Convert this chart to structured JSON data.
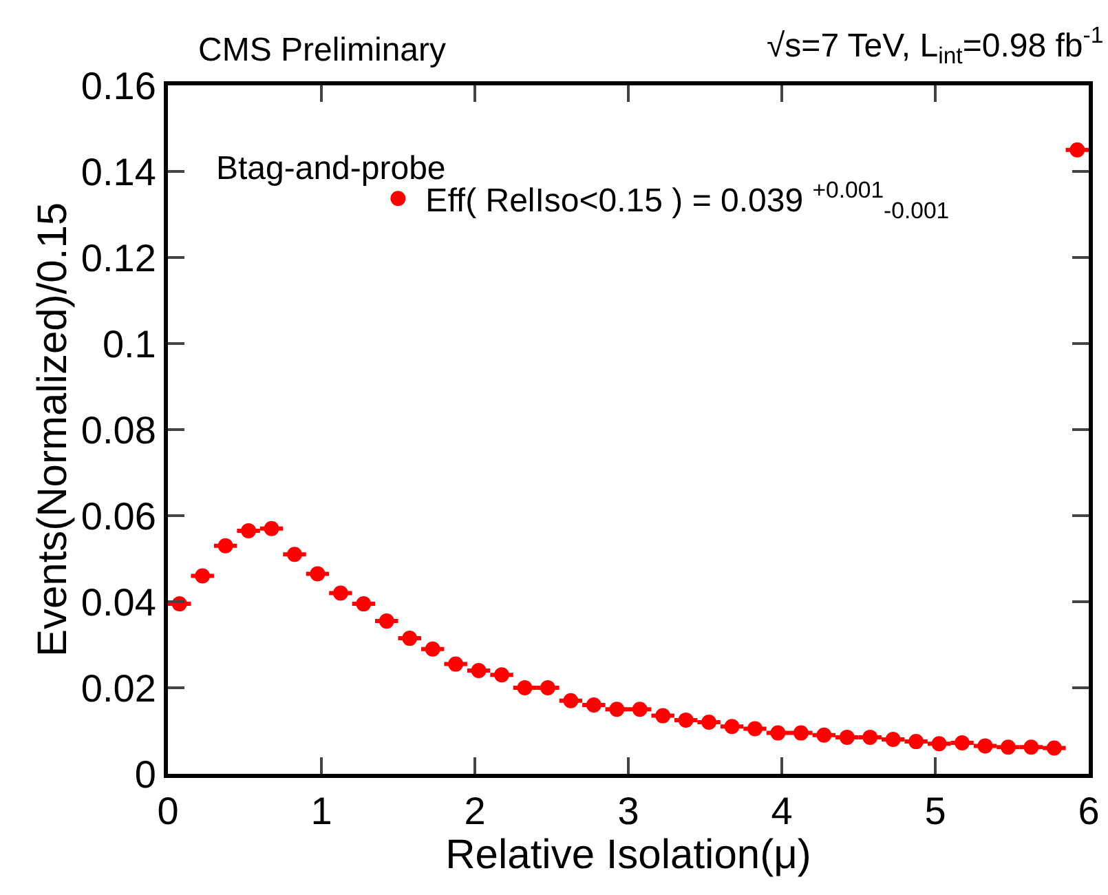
{
  "chart_data": {
    "type": "scatter",
    "title": "CMS Preliminary",
    "subtitle": "√s=7 TeV, L$_{int}$=0.98 fb$^{-1}$",
    "xlabel": "Relative Isolation(μ)",
    "ylabel": "Events(Normalized)/0.15",
    "annotations": [
      "Btag-and-probe"
    ],
    "x": [
      0.075,
      0.225,
      0.375,
      0.525,
      0.675,
      0.825,
      0.975,
      1.125,
      1.275,
      1.425,
      1.575,
      1.725,
      1.875,
      2.025,
      2.175,
      2.325,
      2.475,
      2.625,
      2.775,
      2.925,
      3.075,
      3.225,
      3.375,
      3.525,
      3.675,
      3.825,
      3.975,
      4.125,
      4.275,
      4.425,
      4.575,
      4.725,
      4.875,
      5.025,
      5.175,
      5.325,
      5.475,
      5.625,
      5.775,
      5.925
    ],
    "series": [
      {
        "name": "Eff( RelIso<0.15 ) = 0.039 $^{+0.001}$$_{-0.001}$",
        "color": "#ff0000",
        "values": [
          0.0395,
          0.046,
          0.053,
          0.0565,
          0.057,
          0.051,
          0.0465,
          0.042,
          0.0395,
          0.0355,
          0.0315,
          0.029,
          0.0255,
          0.024,
          0.023,
          0.02,
          0.02,
          0.017,
          0.016,
          0.015,
          0.015,
          0.0135,
          0.0125,
          0.012,
          0.011,
          0.0105,
          0.0095,
          0.0095,
          0.009,
          0.0085,
          0.0085,
          0.008,
          0.0075,
          0.007,
          0.0072,
          0.0065,
          0.0062,
          0.0062,
          0.006,
          0.145
        ],
        "xerrors": [
          0.075,
          0.075,
          0.075,
          0.075,
          0.075,
          0.075,
          0.075,
          0.075,
          0.075,
          0.075,
          0.075,
          0.075,
          0.075,
          0.075,
          0.075,
          0.075,
          0.075,
          0.075,
          0.075,
          0.075,
          0.075,
          0.075,
          0.075,
          0.075,
          0.075,
          0.075,
          0.075,
          0.075,
          0.075,
          0.075,
          0.075,
          0.075,
          0.075,
          0.075,
          0.075,
          0.075,
          0.075,
          0.075,
          0.075,
          0.075
        ]
      }
    ],
    "xlim": [
      0,
      6
    ],
    "xticks": [
      0,
      1,
      2,
      3,
      4,
      5,
      6
    ],
    "ylim": [
      0,
      0.16
    ],
    "yticks": [
      0,
      0.02,
      0.04,
      0.06,
      0.08,
      0.1,
      0.12,
      0.14,
      0.16
    ],
    "grid": false,
    "legend": "top",
    "marker": "circle"
  }
}
